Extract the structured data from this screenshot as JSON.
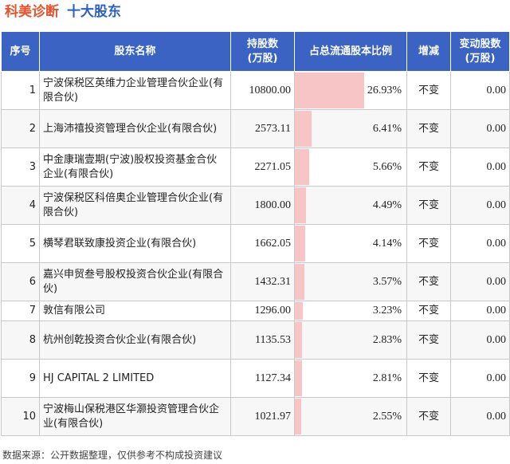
{
  "header": {
    "company": "科美诊断",
    "subject": "十大股东"
  },
  "columns": {
    "index": "序号",
    "name": "股东名称",
    "shares": "持股数\n(万股)",
    "pct": "占总流通股本比例",
    "change": "增减",
    "delta": "变动股数\n(万股)"
  },
  "max_pct": 26.93,
  "rows": [
    {
      "index": "1",
      "name": "宁波保税区英维力企业管理合伙企业(有限合伙)",
      "shares": "10800.00",
      "pct": 26.93,
      "pct_label": "26.93%",
      "change": "不变",
      "delta": "0.00"
    },
    {
      "index": "2",
      "name": "上海沛禧投资管理合伙企业(有限合伙)",
      "shares": "2573.11",
      "pct": 6.41,
      "pct_label": "6.41%",
      "change": "不变",
      "delta": "0.00"
    },
    {
      "index": "3",
      "name": "中金康瑞壹期(宁波)股权投资基金合伙企业(有限合伙)",
      "shares": "2271.05",
      "pct": 5.66,
      "pct_label": "5.66%",
      "change": "不变",
      "delta": "0.00"
    },
    {
      "index": "4",
      "name": "宁波保税区科倍奥企业管理合伙企业(有限合伙)",
      "shares": "1800.00",
      "pct": 4.49,
      "pct_label": "4.49%",
      "change": "不变",
      "delta": "0.00"
    },
    {
      "index": "5",
      "name": "横琴君联致康投资企业(有限合伙)",
      "shares": "1662.05",
      "pct": 4.14,
      "pct_label": "4.14%",
      "change": "不变",
      "delta": "0.00"
    },
    {
      "index": "6",
      "name": "嘉兴申贸叁号股权投资合伙企业(有限合伙)",
      "shares": "1432.31",
      "pct": 3.57,
      "pct_label": "3.57%",
      "change": "不变",
      "delta": "0.00"
    },
    {
      "index": "7",
      "name": "敦信有限公司",
      "shares": "1296.00",
      "pct": 3.23,
      "pct_label": "3.23%",
      "change": "不变",
      "delta": "0.00"
    },
    {
      "index": "8",
      "name": "杭州创乾投资合伙企业(有限合伙)",
      "shares": "1135.53",
      "pct": 2.83,
      "pct_label": "2.83%",
      "change": "不变",
      "delta": "0.00"
    },
    {
      "index": "9",
      "name": "HJ CAPITAL 2 LIMITED",
      "shares": "1127.34",
      "pct": 2.81,
      "pct_label": "2.81%",
      "change": "不变",
      "delta": "0.00"
    },
    {
      "index": "10",
      "name": "宁波梅山保税港区华灏投资管理合伙企业(有限合伙)",
      "shares": "1021.97",
      "pct": 2.55,
      "pct_label": "2.55%",
      "change": "不变",
      "delta": "0.00"
    }
  ],
  "footer": {
    "source": "数据来源：公开数据整理，仅供参考不构成投资建议"
  },
  "colors": {
    "header_bg": "#3a63c4",
    "bar": "#f7c5c5",
    "company": "#e8512a",
    "subject": "#2b5fc4"
  }
}
